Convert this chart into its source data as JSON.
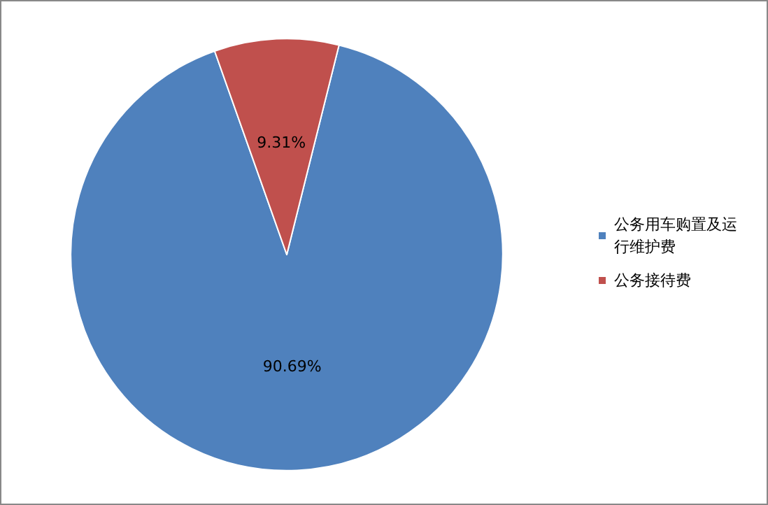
{
  "chart_data": {
    "type": "pie",
    "categories": [
      "公务用车购置及运行维护费",
      "公务接待费"
    ],
    "values": [
      90.69,
      9.31
    ],
    "colors": [
      "#4f81bd",
      "#c0504d"
    ],
    "value_labels": [
      "90.69%",
      "9.31%"
    ],
    "legend": "right"
  }
}
